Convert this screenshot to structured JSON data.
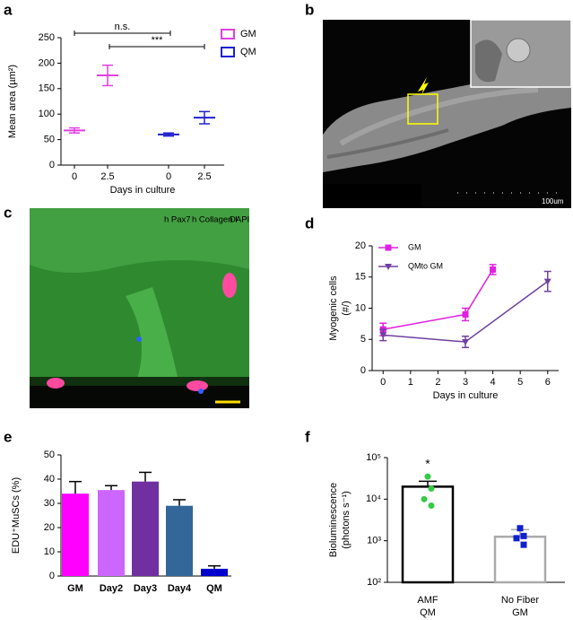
{
  "figure": {
    "panel_labels": [
      "a",
      "b",
      "c",
      "d",
      "e",
      "f"
    ]
  },
  "images": {
    "b": {
      "scale_label": "100um"
    },
    "c": {
      "labels": [
        {
          "text": "h Pax7",
          "color": "#ff3030"
        },
        {
          "text": "h Collagen I",
          "color": "#30e030"
        },
        {
          "text": "DAPI",
          "color": "#4080ff"
        }
      ]
    }
  },
  "chart_data": [
    {
      "type": "errorbar",
      "y_label": "Mean area (µm²)",
      "x_label": "Days in culture",
      "categories": [
        "0",
        "2.5",
        "0",
        "2.5"
      ],
      "series": [
        {
          "name": "GM",
          "color": "#e040e0",
          "values": [
            68,
            176,
            null,
            null
          ],
          "errors": [
            5,
            20,
            null,
            null
          ]
        },
        {
          "name": "QM",
          "color": "#2020d0",
          "values": [
            null,
            null,
            60,
            93
          ],
          "errors": [
            null,
            null,
            3,
            12
          ]
        }
      ],
      "ylim": [
        0,
        250
      ],
      "yticks": [
        0,
        50,
        100,
        150,
        200,
        250
      ],
      "annotations": [
        "n.s.",
        "***"
      ],
      "legend": "upper right"
    },
    {
      "type": "line",
      "y_label": [
        "Myogenic cells",
        "(#/)"
      ],
      "x_label": "Days in culture",
      "series": [
        {
          "name": "GM",
          "color": "#e020e0",
          "marker": "square",
          "x": [
            0,
            3,
            4
          ],
          "values": [
            6.6,
            9,
            16.2
          ],
          "errors": [
            1,
            1,
            0.8
          ]
        },
        {
          "name": "QMto GM",
          "color": "#7040a0",
          "marker": "triangle",
          "x": [
            0,
            3,
            6
          ],
          "values": [
            5.7,
            4.6,
            14.3
          ],
          "errors": [
            0.9,
            0.9,
            1.6
          ]
        }
      ],
      "xlim": [
        -0.4,
        6.4
      ],
      "xticks": [
        0,
        1,
        2,
        3,
        4,
        5,
        6
      ],
      "ylim": [
        0,
        20
      ],
      "yticks": [
        0,
        5,
        10,
        15,
        20
      ],
      "legend": "upper left"
    },
    {
      "type": "bar",
      "y_label": "EDU⁺MuSCs (%)",
      "categories": [
        "GM",
        "Day2",
        "Day3",
        "Day4",
        "QM"
      ],
      "values": [
        34,
        35.5,
        39,
        29,
        3
      ],
      "errors": [
        5,
        1.8,
        3.8,
        2.5,
        1.2
      ],
      "colors": [
        "#ff00ff",
        "#cc66ff",
        "#7030a0",
        "#336699",
        "#0000cc"
      ],
      "ylim": [
        0,
        50
      ],
      "yticks": [
        0,
        10,
        20,
        30,
        40,
        50
      ]
    },
    {
      "type": "bar_scatter",
      "log_scale": true,
      "y_label": [
        "Bioluminescence",
        "(photons s⁻¹)"
      ],
      "categories": [
        [
          "AMF",
          "QM"
        ],
        [
          "No Fiber",
          "GM"
        ]
      ],
      "values": [
        20000,
        1250
      ],
      "errors": [
        7000,
        600
      ],
      "edge_colors": [
        "#000000",
        "#aaaaaa"
      ],
      "points": [
        {
          "color": "#33cc44",
          "values": [
            35000,
            18000,
            10000,
            7000
          ]
        },
        {
          "color": "#1020d0",
          "values": [
            2000,
            1300,
            1150,
            800
          ]
        }
      ],
      "ylim": [
        100,
        100000
      ],
      "yticks": [
        {
          "value": 100,
          "label": "10²"
        },
        {
          "value": 1000,
          "label": "10³"
        },
        {
          "value": 10000,
          "label": "10⁴"
        },
        {
          "value": 100000,
          "label": "10⁵"
        }
      ],
      "annotations": [
        "*"
      ]
    }
  ]
}
